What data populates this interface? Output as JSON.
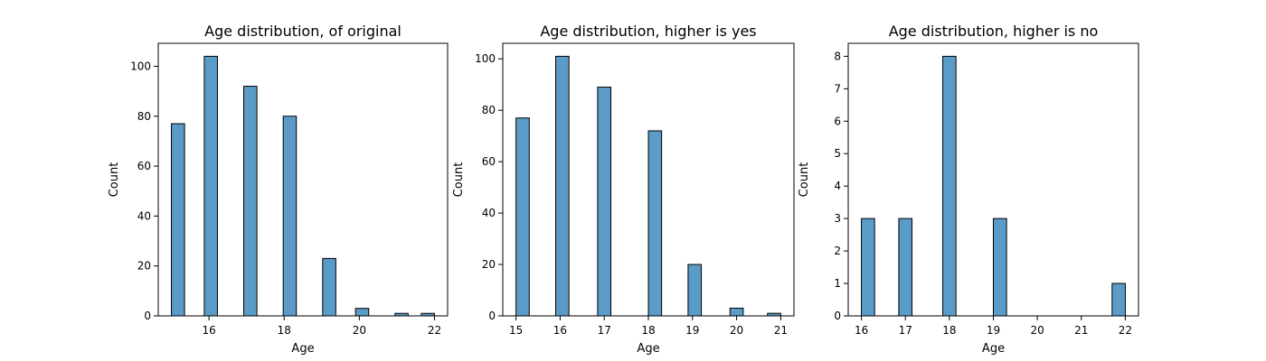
{
  "chart_data": [
    {
      "type": "bar",
      "title": "Age distribution, of original",
      "xlabel": "Age",
      "ylabel": "Count",
      "xlim": [
        14.65,
        22.35
      ],
      "ylim": [
        0,
        109.2
      ],
      "xticks": [
        16,
        18,
        20,
        22
      ],
      "yticks": [
        0,
        20,
        40,
        60,
        80,
        100
      ],
      "bar_width": 0.35,
      "x": [
        15.175,
        16.05,
        17.1,
        18.15,
        19.2,
        20.075,
        21.125,
        21.825
      ],
      "values": [
        77,
        104,
        92,
        80,
        23,
        3,
        1,
        1
      ]
    },
    {
      "type": "bar",
      "title": "Age distribution, higher is yes",
      "xlabel": "Age",
      "ylabel": "Count",
      "xlim": [
        14.7,
        21.3
      ],
      "ylim": [
        0,
        106.05
      ],
      "xticks": [
        15,
        16,
        17,
        18,
        19,
        20,
        21
      ],
      "yticks": [
        0,
        20,
        40,
        60,
        80,
        100
      ],
      "bar_width": 0.3,
      "x": [
        15.15,
        16.05,
        17.0,
        18.15,
        19.05,
        20.0,
        20.85
      ],
      "values": [
        77,
        101,
        89,
        72,
        20,
        3,
        1
      ]
    },
    {
      "type": "bar",
      "title": "Age distribution, higher is no",
      "xlabel": "Age",
      "ylabel": "Count",
      "xlim": [
        15.7,
        22.3
      ],
      "ylim": [
        0,
        8.4
      ],
      "xticks": [
        16,
        17,
        18,
        19,
        20,
        21,
        22
      ],
      "yticks": [
        0,
        1,
        2,
        3,
        4,
        5,
        6,
        7,
        8
      ],
      "bar_width": 0.3,
      "x": [
        16.15,
        17.0,
        18.0,
        19.15,
        21.85
      ],
      "values": [
        3,
        3,
        8,
        3,
        1
      ]
    }
  ]
}
